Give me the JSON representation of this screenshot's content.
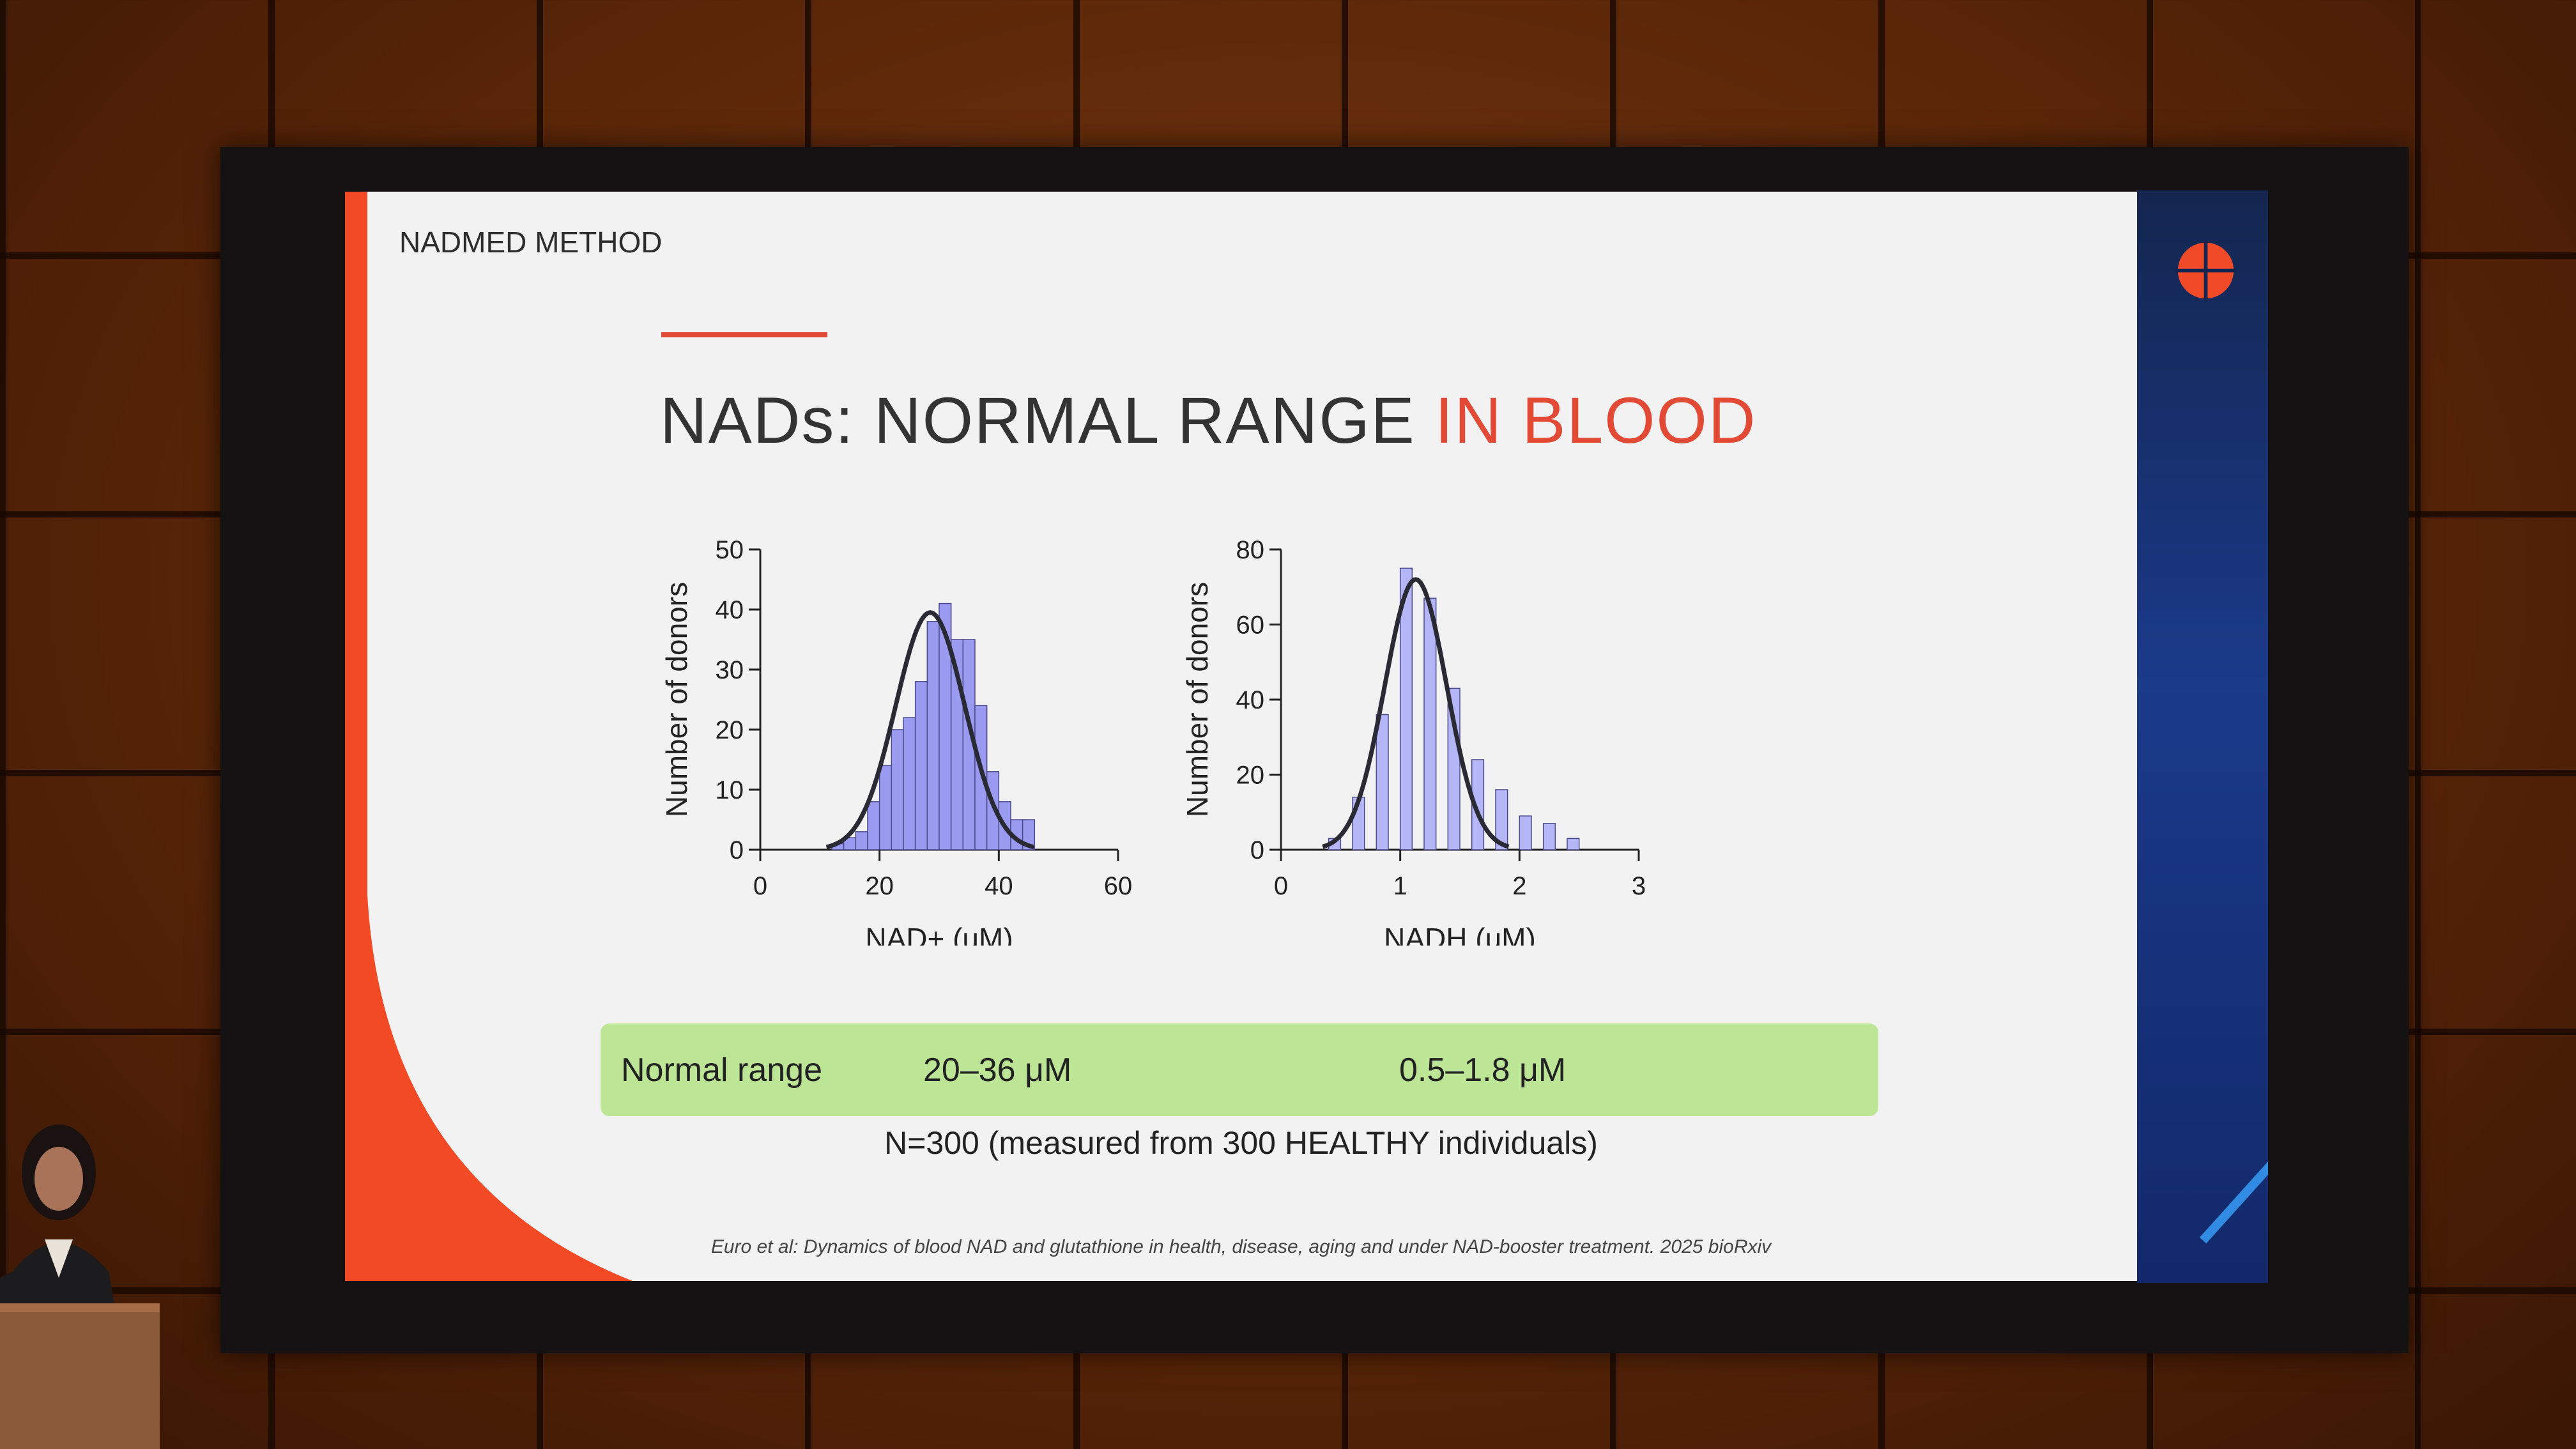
{
  "slide": {
    "section_label": "NADMED METHOD",
    "title": "NADs: NORMAL RANGE",
    "title_accent": "IN BLOOD",
    "accent_color": "#e34a36",
    "normal_range": {
      "label": "Normal range",
      "nad_value": "20–36  μM",
      "nadh_value": "0.5–1.8  μM",
      "bar_color": "#bce596"
    },
    "sample_note": "N=300 (measured from 300 HEALTHY individuals)",
    "citation": "Euro et al: Dynamics of blood NAD and glutathione in health, disease, aging and under NAD-booster treatment. 2025 bioRxiv"
  },
  "chart_data": [
    {
      "type": "bar",
      "xlabel": "NAD+ (uM)",
      "ylabel": "Number of donors",
      "xlim": [
        0,
        60
      ],
      "ylim": [
        0,
        50
      ],
      "xticks": [
        0,
        20,
        40,
        60
      ],
      "yticks": [
        0,
        10,
        20,
        30,
        40,
        50
      ],
      "bins": [
        12,
        14,
        16,
        18,
        20,
        22,
        24,
        26,
        28,
        30,
        32,
        34,
        36,
        38,
        40,
        42,
        44
      ],
      "bin_width": 2,
      "values": [
        1,
        2,
        3,
        8,
        14,
        20,
        22,
        28,
        38,
        41,
        35,
        35,
        24,
        13,
        8,
        5,
        5
      ],
      "fit_curve": {
        "type": "normal",
        "mean": 28.5,
        "sd": 5.8,
        "peak": 39.5
      },
      "bar_color": "#9a9bf0"
    },
    {
      "type": "bar",
      "xlabel": "NADH (uM)",
      "ylabel": "Number of donors",
      "xlim": [
        0,
        3
      ],
      "ylim": [
        0,
        80
      ],
      "xticks": [
        0,
        1,
        2,
        3
      ],
      "yticks": [
        0,
        20,
        40,
        60,
        80
      ],
      "bins": [
        0.4,
        0.6,
        0.8,
        1.0,
        1.2,
        1.4,
        1.6,
        1.8,
        2.0,
        2.2,
        2.4
      ],
      "bin_width": 0.1,
      "values": [
        3,
        14,
        36,
        75,
        67,
        43,
        24,
        16,
        9,
        7,
        3
      ],
      "fit_curve": {
        "type": "normal",
        "mean": 1.13,
        "sd": 0.26,
        "peak": 72
      },
      "bar_color": "#b5b6f7"
    }
  ]
}
